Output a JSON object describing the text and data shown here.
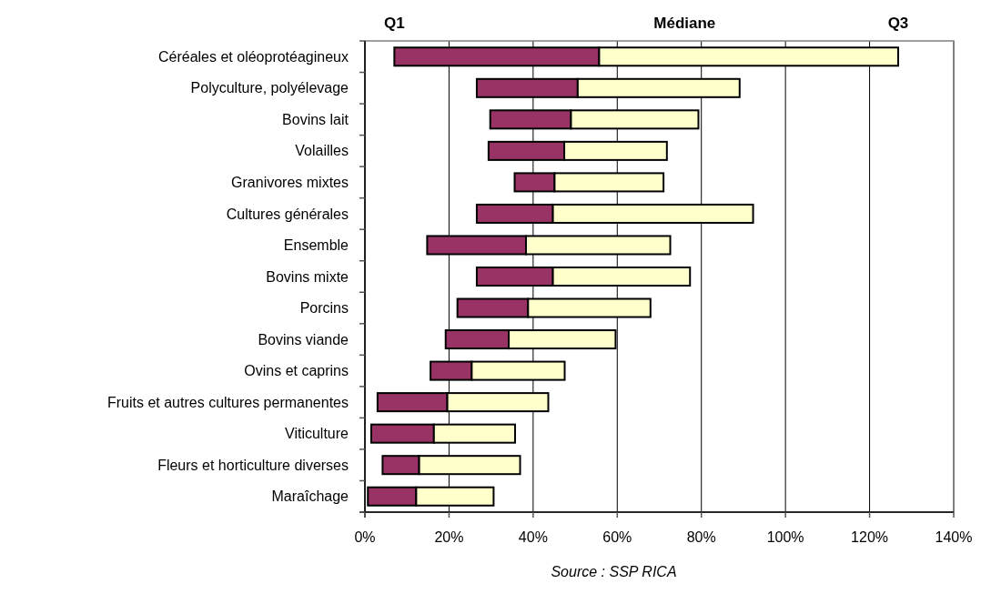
{
  "chart_data": {
    "type": "bar",
    "orientation": "horizontal",
    "stacked": true,
    "categories": [
      "Céréales et oléoprotéagineux",
      "Polyculture, polyélevage",
      "Bovins lait",
      "Volailles",
      "Granivores mixtes",
      "Cultures générales",
      "Ensemble",
      "Bovins mixte",
      "Porcins",
      "Bovins viande",
      "Ovins et caprins",
      "Fruits et autres cultures permanentes",
      "Viticulture",
      "Fleurs et horticulture diverses",
      "Maraîchage"
    ],
    "series": [
      {
        "color": "#993366",
        "base": [
          7.0,
          26.6,
          29.8,
          29.4,
          35.6,
          26.6,
          14.8,
          26.6,
          22.0,
          19.2,
          15.6,
          3.0,
          1.5,
          4.2,
          0.7
        ],
        "values": [
          48.7,
          24.0,
          19.2,
          18.0,
          9.5,
          18.1,
          23.5,
          18.1,
          16.8,
          15.0,
          9.8,
          16.6,
          14.9,
          8.7,
          11.5
        ]
      },
      {
        "color": "#ffffcc",
        "values": [
          71.1,
          38.5,
          30.3,
          24.4,
          25.9,
          47.6,
          34.3,
          32.6,
          29.1,
          25.4,
          22.1,
          24.0,
          19.3,
          24.0,
          18.4
        ]
      }
    ],
    "xlim": [
      0,
      140
    ],
    "xticks": [
      {
        "value": 0,
        "label": "0%"
      },
      {
        "value": 20,
        "label": "20%"
      },
      {
        "value": 40,
        "label": "40%"
      },
      {
        "value": 60,
        "label": "60%"
      },
      {
        "value": 80,
        "label": "80%"
      },
      {
        "value": 100,
        "label": "100%"
      },
      {
        "value": 120,
        "label": "120%"
      },
      {
        "value": 140,
        "label": "140%"
      }
    ],
    "grid": "x",
    "annotations": [
      "Q1",
      "Médiane",
      "Q3",
      "Source : SSP RICA"
    ]
  }
}
